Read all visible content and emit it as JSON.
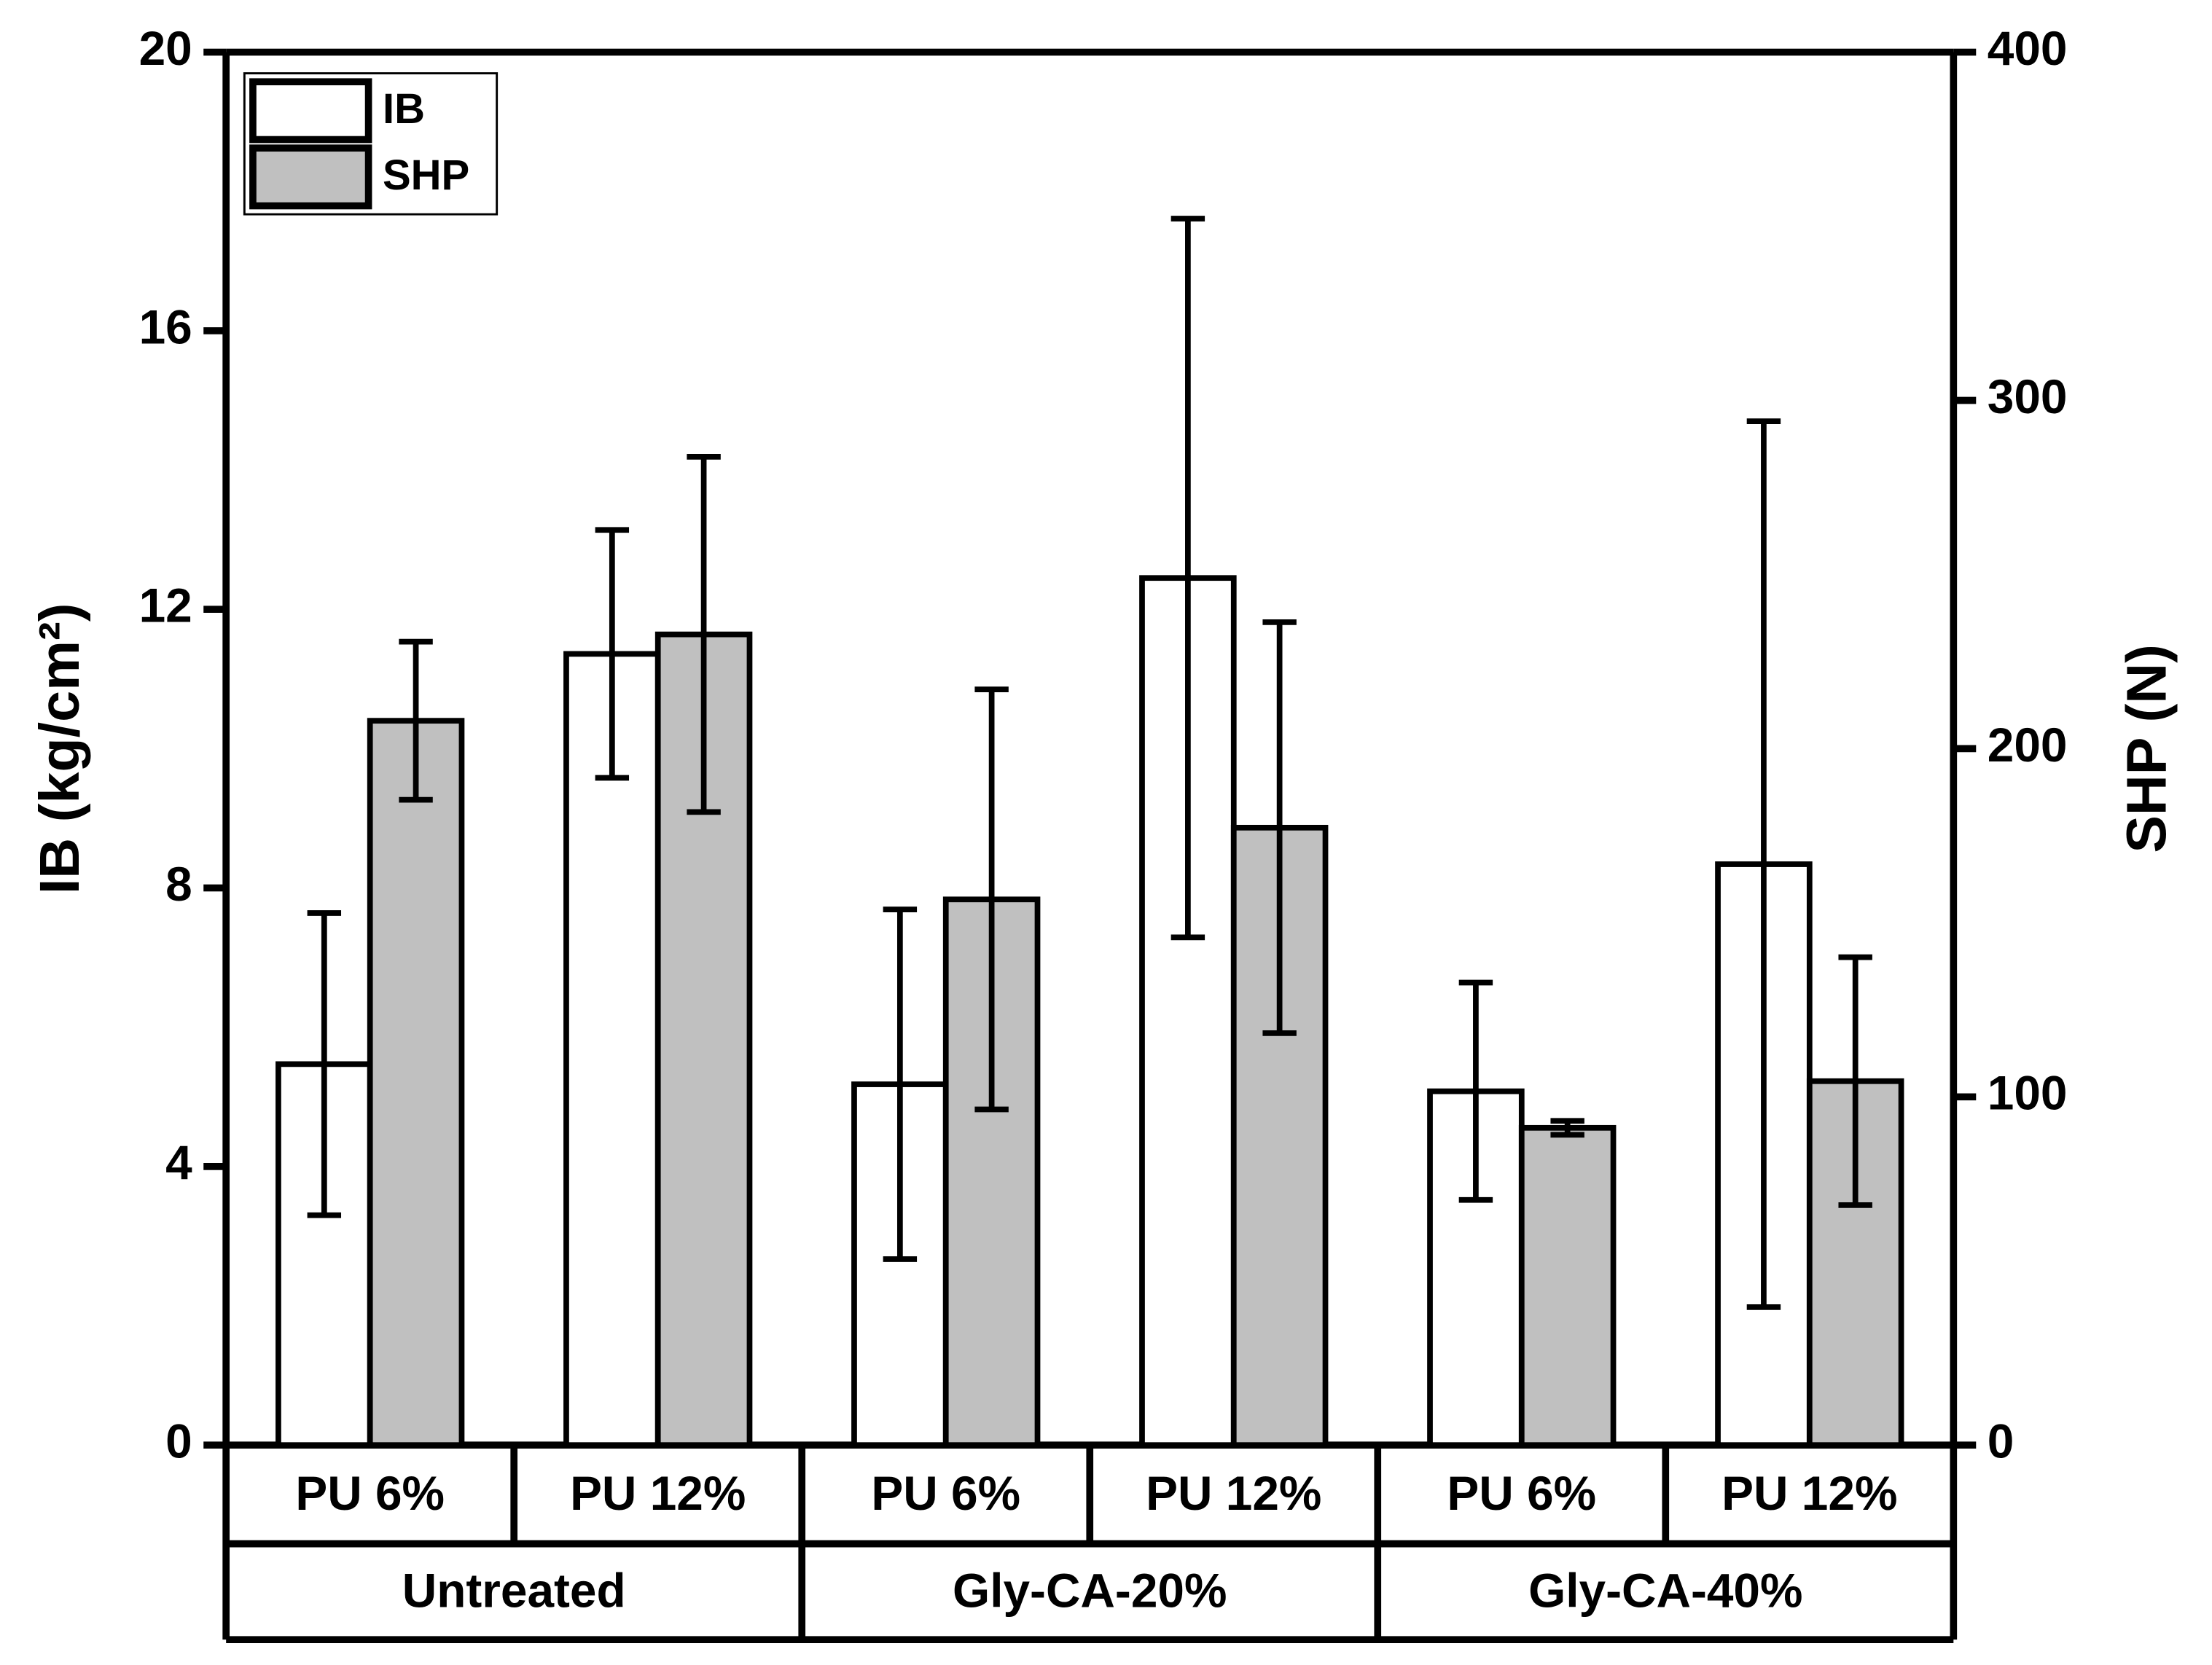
{
  "chart_data": {
    "type": "bar",
    "categories": [
      "PU 6%",
      "PU 12%",
      "PU 6%",
      "PU 12%",
      "PU 6%",
      "PU 12%"
    ],
    "groups": [
      "Untreated",
      "Gly-CA-20%",
      "Gly-CA-40%"
    ],
    "y_label": "IB (kg/cm²)",
    "y2_label": "SHP (N)",
    "ylim": [
      0,
      20
    ],
    "yticks": [
      0,
      4,
      8,
      12,
      16,
      20
    ],
    "y2lim": [
      0,
      400
    ],
    "y2ticks": [
      0,
      100,
      200,
      300,
      400
    ],
    "legend": "upper left",
    "series": [
      {
        "name": "IB",
        "color": "#ffffff",
        "values": [
          5.47,
          11.36,
          5.18,
          12.45,
          5.08,
          8.34
        ],
        "errors": [
          2.17,
          1.78,
          2.51,
          5.16,
          1.56,
          6.36
        ]
      },
      {
        "name": "SHP",
        "color": "#c0c0c0",
        "axis": "y2",
        "values": [
          208,
          232.8,
          156.7,
          177.3,
          91.1,
          104.5
        ],
        "errors": [
          22.7,
          51,
          60.3,
          59,
          2,
          35.6
        ]
      }
    ]
  }
}
